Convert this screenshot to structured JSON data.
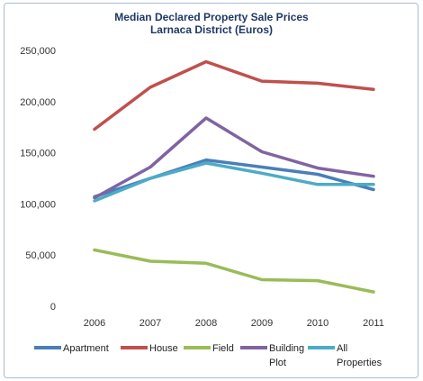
{
  "chart_data": {
    "type": "line",
    "title": "Median Declared Property Sale Prices",
    "subtitle": "Larnaca District (Euros)",
    "x": [
      "2006",
      "2007",
      "2008",
      "2009",
      "2010",
      "2011"
    ],
    "ylim": [
      0,
      250000
    ],
    "yticks": [
      "0",
      "50,000",
      "100,000",
      "150,000",
      "200,000",
      "250,000"
    ],
    "grid": false,
    "legend_position": "bottom",
    "series": [
      {
        "name": "Apartment",
        "color": "#4a7ebb",
        "values": [
          107000,
          125000,
          143000,
          136000,
          129000,
          114000
        ]
      },
      {
        "name": "House",
        "color": "#c0504d",
        "values": [
          173000,
          214000,
          239000,
          220000,
          218000,
          212000
        ]
      },
      {
        "name": "Field",
        "color": "#9bbb59",
        "values": [
          55000,
          44000,
          42000,
          26000,
          25000,
          14000
        ]
      },
      {
        "name": "Building Plot",
        "color": "#8064a2",
        "values": [
          106000,
          136000,
          184000,
          151000,
          135000,
          127000
        ]
      },
      {
        "name": "All Properties",
        "color": "#4bacc6",
        "values": [
          103000,
          125000,
          140000,
          130000,
          119000,
          119000
        ]
      }
    ]
  }
}
